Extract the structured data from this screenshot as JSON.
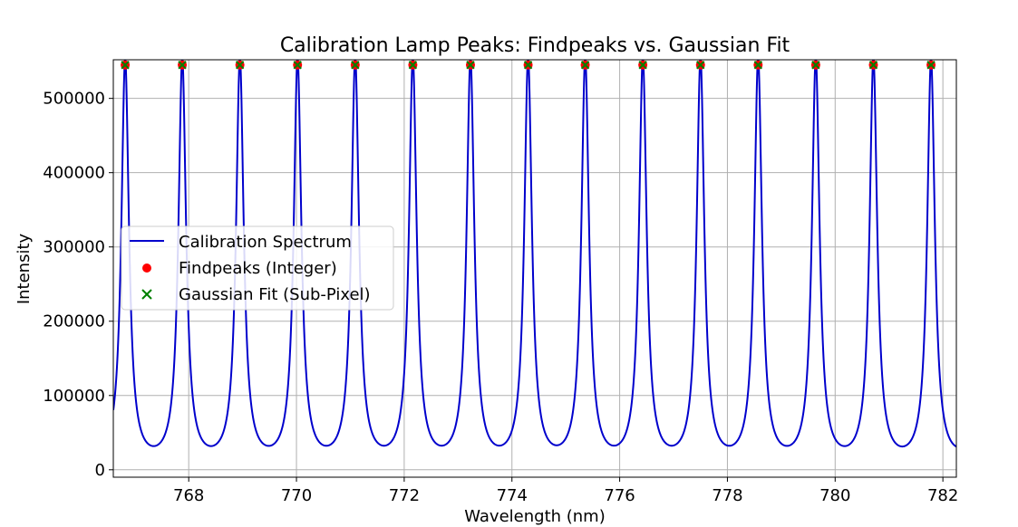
{
  "chart_data": {
    "type": "line",
    "title": "Calibration Lamp Peaks: Findpeaks vs. Gaussian Fit",
    "xlabel": "Wavelength (nm)",
    "ylabel": "Intensity",
    "xlim": [
      766.6,
      782.25
    ],
    "ylim": [
      -10000,
      552000
    ],
    "xticks": [
      768,
      770,
      772,
      774,
      776,
      778,
      780,
      782
    ],
    "xtick_labels": [
      "768",
      "770",
      "772",
      "774",
      "776",
      "778",
      "780",
      "782"
    ],
    "yticks": [
      0,
      100000,
      200000,
      300000,
      400000,
      500000
    ],
    "ytick_labels": [
      "0",
      "100000",
      "200000",
      "300000",
      "400000",
      "500000"
    ],
    "grid": true,
    "legend_position": "center-left",
    "series": [
      {
        "name": "Calibration Spectrum",
        "kind": "line",
        "color": "#0000cc",
        "model": {
          "peak_centers": [
            766.82,
            767.88,
            768.95,
            770.02,
            771.09,
            772.16,
            773.23,
            774.3,
            775.36,
            776.43,
            777.5,
            778.57,
            779.64,
            780.71,
            781.78
          ],
          "peak_height": 545000,
          "peak_spacing": 1.07,
          "peak_gamma": 0.085
        }
      },
      {
        "name": "Findpeaks (Integer)",
        "kind": "scatter",
        "marker": "circle",
        "color": "#ff0000",
        "x": [
          766.82,
          767.88,
          768.95,
          770.02,
          771.09,
          772.16,
          773.23,
          774.3,
          775.36,
          776.43,
          777.5,
          778.57,
          779.64,
          780.71,
          781.78
        ],
        "y": [
          545000,
          545000,
          545000,
          545000,
          545000,
          545000,
          545000,
          545000,
          545000,
          545000,
          545000,
          545000,
          545000,
          545000,
          545000
        ]
      },
      {
        "name": "Gaussian Fit (Sub-Pixel)",
        "kind": "scatter",
        "marker": "x",
        "color": "#008000",
        "x": [
          766.82,
          767.88,
          768.95,
          770.02,
          771.09,
          772.16,
          773.23,
          774.3,
          775.36,
          776.43,
          777.5,
          778.57,
          779.64,
          780.71,
          781.78
        ],
        "y": [
          545000,
          545000,
          545000,
          545000,
          545000,
          545000,
          545000,
          545000,
          545000,
          545000,
          545000,
          545000,
          545000,
          545000,
          545000
        ]
      }
    ]
  }
}
